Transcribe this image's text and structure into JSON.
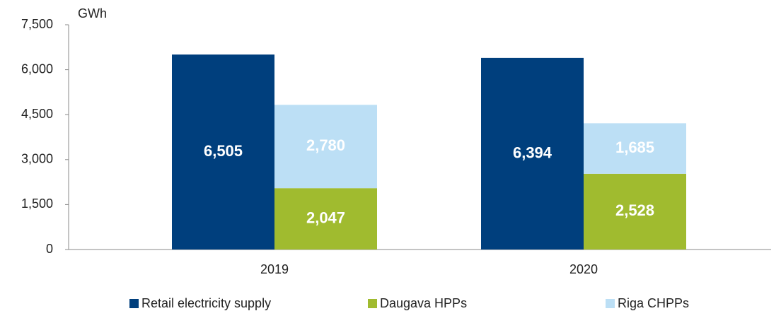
{
  "chart_data": {
    "type": "stacked-grouped-bar",
    "y_label": "GWh",
    "categories": [
      "2019",
      "2020"
    ],
    "series": [
      {
        "name": "Retail electricity supply",
        "color": "#003f7d",
        "stack": 0,
        "values": [
          6505,
          6394
        ],
        "value_labels": [
          "6,505",
          "6,394"
        ]
      },
      {
        "name": "Daugava HPPs",
        "color": "#a0bb2f",
        "stack": 1,
        "values": [
          2047,
          2528
        ],
        "value_labels": [
          "2,047",
          "2,528"
        ]
      },
      {
        "name": "Riga CHPPs",
        "color": "#bcdff5",
        "stack": 1,
        "values": [
          2780,
          1685
        ],
        "value_labels": [
          "2,780",
          "1,685"
        ]
      }
    ],
    "ylim": [
      0,
      7500
    ],
    "yticks": [
      0,
      {
        "value": 1500,
        "label": "1,500"
      },
      {
        "value": 3000,
        "label": "3,000"
      },
      {
        "value": 4500,
        "label": "4,500"
      },
      {
        "value": 6000,
        "label": "6,000"
      },
      {
        "value": 7500,
        "label": "7,500"
      }
    ],
    "grid": false
  }
}
